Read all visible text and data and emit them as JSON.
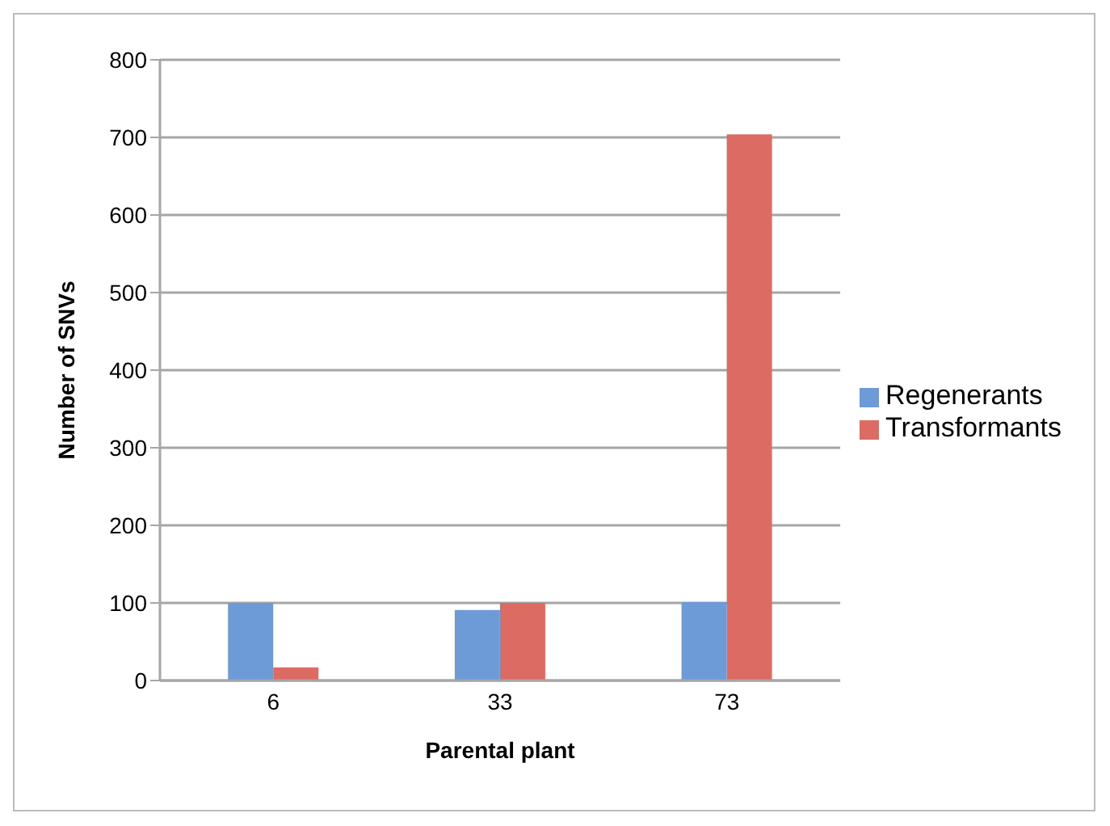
{
  "chart_data": {
    "type": "bar",
    "xlabel": "Parental plant",
    "ylabel": "Number of SNVs",
    "categories": [
      "6",
      "33",
      "73"
    ],
    "series": [
      {
        "name": "Regenerants",
        "color": "#6c9bd8",
        "values": [
          100,
          91,
          101
        ]
      },
      {
        "name": "Transformants",
        "color": "#dc6b63",
        "values": [
          17,
          100,
          704
        ]
      }
    ],
    "ylim": [
      0,
      800
    ],
    "yticks": [
      0,
      100,
      200,
      300,
      400,
      500,
      600,
      700,
      800
    ],
    "grid": "y",
    "legend": "right"
  }
}
